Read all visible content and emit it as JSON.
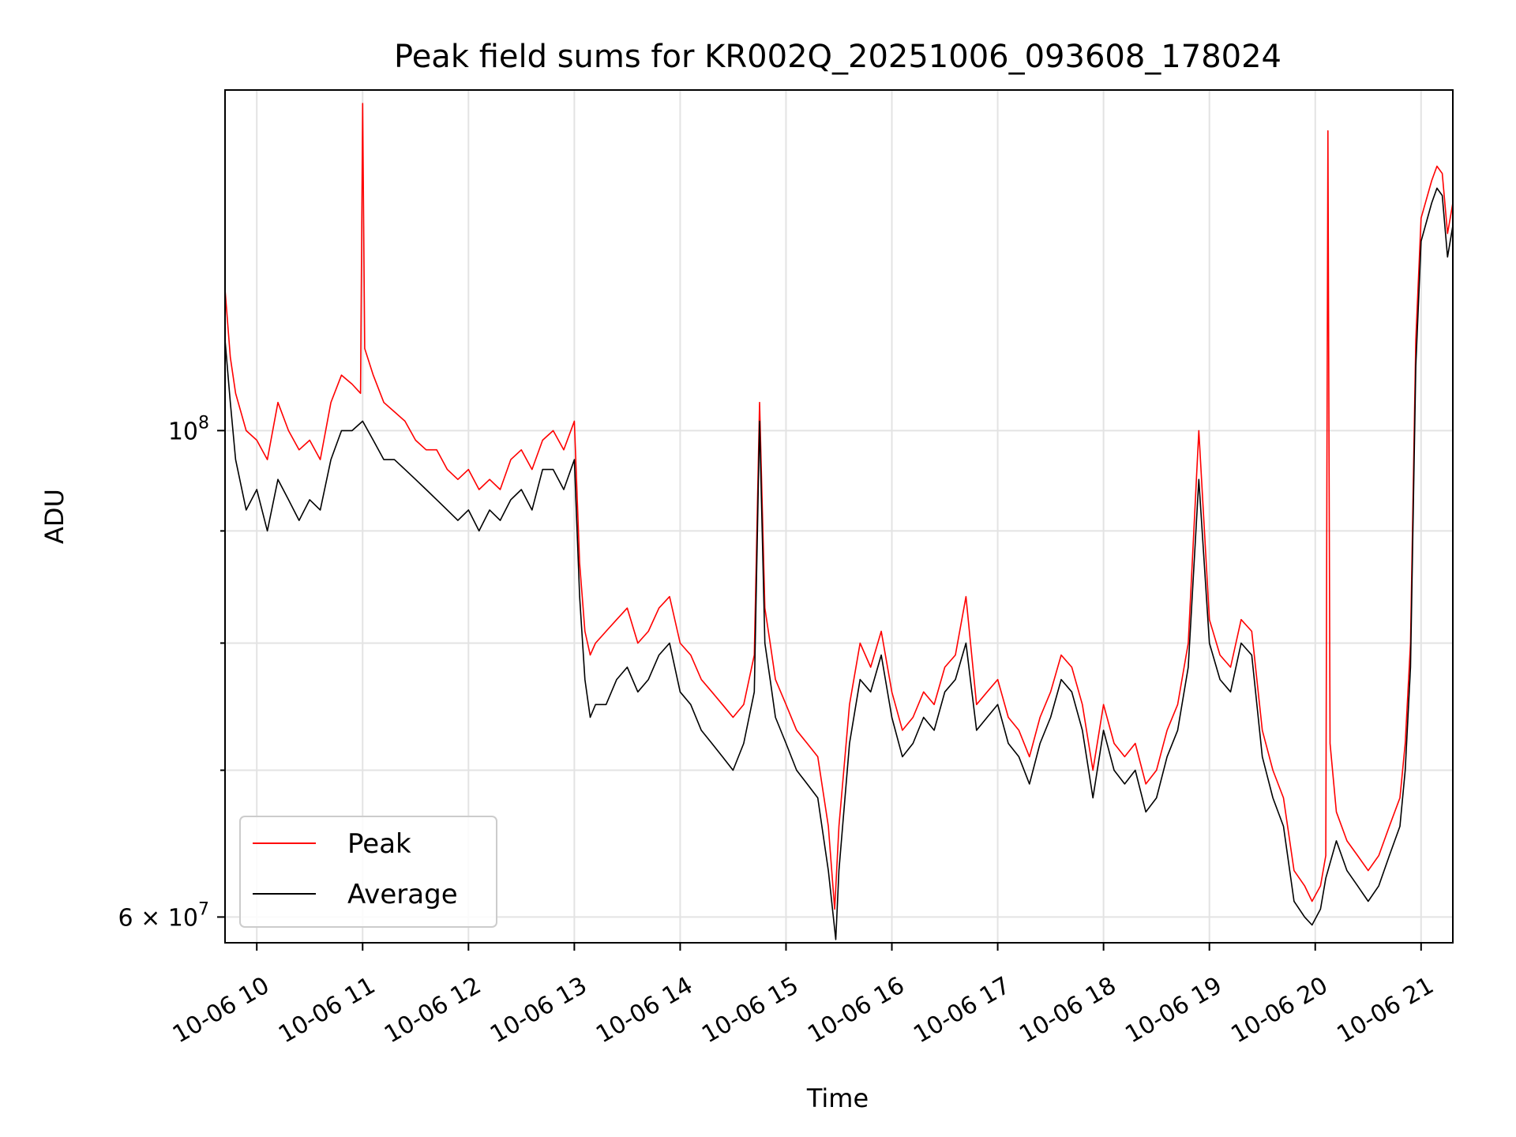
{
  "chart_data": {
    "type": "line",
    "title": "Peak field sums for KR002Q_20251006_093608_178024",
    "xlabel": "Time",
    "ylabel": "ADU",
    "yscale": "log",
    "grid": true,
    "legend_position": "lower-left",
    "x_unit": "hours since 2025-10-06 00:00",
    "xlim": [
      9.7,
      21.3
    ],
    "ylim": [
      58400000,
      143000000
    ],
    "x_ticks": [
      10,
      11,
      12,
      13,
      14,
      15,
      16,
      17,
      18,
      19,
      20,
      21
    ],
    "x_tick_labels": [
      "10-06 10",
      "10-06 11",
      "10-06 12",
      "10-06 13",
      "10-06 14",
      "10-06 15",
      "10-06 16",
      "10-06 17",
      "10-06 18",
      "10-06 19",
      "10-06 20",
      "10-06 21"
    ],
    "y_major_ticks": [
      60000000,
      100000000
    ],
    "y_major_labels": [
      {
        "base": "6 × 10",
        "exp": "7"
      },
      {
        "base": "10",
        "exp": "8"
      }
    ],
    "y_minor_ticks": [
      70000000,
      80000000,
      90000000
    ],
    "series": [
      {
        "name": "Peak",
        "color": "#ff0000",
        "x": [
          9.7,
          9.75,
          9.8,
          9.9,
          10.0,
          10.1,
          10.2,
          10.3,
          10.4,
          10.5,
          10.6,
          10.7,
          10.8,
          10.9,
          10.98,
          11.0,
          11.02,
          11.1,
          11.2,
          11.3,
          11.4,
          11.5,
          11.6,
          11.7,
          11.8,
          11.9,
          12.0,
          12.1,
          12.2,
          12.3,
          12.4,
          12.5,
          12.6,
          12.7,
          12.8,
          12.9,
          13.0,
          13.05,
          13.1,
          13.15,
          13.2,
          13.3,
          13.4,
          13.5,
          13.6,
          13.7,
          13.8,
          13.9,
          14.0,
          14.1,
          14.2,
          14.3,
          14.4,
          14.5,
          14.6,
          14.7,
          14.75,
          14.8,
          14.85,
          14.9,
          15.0,
          15.1,
          15.2,
          15.3,
          15.4,
          15.46,
          15.5,
          15.6,
          15.7,
          15.8,
          15.9,
          16.0,
          16.1,
          16.2,
          16.3,
          16.4,
          16.5,
          16.6,
          16.7,
          16.8,
          16.9,
          17.0,
          17.1,
          17.2,
          17.3,
          17.4,
          17.5,
          17.6,
          17.7,
          17.8,
          17.9,
          18.0,
          18.1,
          18.2,
          18.3,
          18.4,
          18.5,
          18.6,
          18.7,
          18.8,
          18.9,
          19.0,
          19.1,
          19.2,
          19.3,
          19.4,
          19.5,
          19.6,
          19.7,
          19.8,
          19.9,
          19.97,
          20.05,
          20.1,
          20.12,
          20.14,
          20.2,
          20.3,
          20.4,
          20.5,
          20.6,
          20.7,
          20.8,
          20.85,
          20.9,
          20.95,
          21.0,
          21.1,
          21.15,
          21.2,
          21.25,
          21.3
        ],
        "y": [
          116000000,
          108000000,
          104000000,
          100000000,
          99000000,
          97000000,
          103000000,
          100000000,
          98000000,
          99000000,
          97000000,
          103000000,
          106000000,
          105000000,
          104000000,
          141000000,
          109000000,
          106000000,
          103000000,
          102000000,
          101000000,
          99000000,
          98000000,
          98000000,
          96000000,
          95000000,
          96000000,
          94000000,
          95000000,
          94000000,
          97000000,
          98000000,
          96000000,
          99000000,
          100000000,
          98000000,
          101000000,
          87000000,
          81000000,
          79000000,
          80000000,
          81000000,
          82000000,
          83000000,
          80000000,
          81000000,
          83000000,
          84000000,
          80000000,
          79000000,
          77000000,
          76000000,
          75000000,
          74000000,
          75000000,
          79000000,
          103000000,
          83000000,
          80000000,
          77000000,
          75000000,
          73000000,
          72000000,
          71000000,
          66000000,
          60500000,
          66000000,
          75000000,
          80000000,
          78000000,
          81000000,
          76000000,
          73000000,
          74000000,
          76000000,
          75000000,
          78000000,
          79000000,
          84000000,
          75000000,
          76000000,
          77000000,
          74000000,
          73000000,
          71000000,
          74000000,
          76000000,
          79000000,
          78000000,
          75000000,
          70000000,
          75000000,
          72000000,
          71000000,
          72000000,
          69000000,
          70000000,
          73000000,
          75000000,
          80000000,
          100000000,
          82000000,
          79000000,
          78000000,
          82000000,
          81000000,
          73000000,
          70000000,
          68000000,
          63000000,
          62000000,
          61000000,
          62000000,
          64000000,
          137000000,
          72000000,
          67000000,
          65000000,
          64000000,
          63000000,
          64000000,
          66000000,
          68000000,
          72000000,
          80000000,
          110000000,
          125000000,
          130000000,
          132000000,
          131000000,
          123000000,
          127000000
        ],
        "role": "data"
      },
      {
        "name": "Average",
        "color": "#000000",
        "x": [
          9.7,
          9.75,
          9.8,
          9.9,
          10.0,
          10.1,
          10.2,
          10.3,
          10.4,
          10.5,
          10.6,
          10.7,
          10.8,
          10.9,
          11.0,
          11.1,
          11.2,
          11.3,
          11.4,
          11.5,
          11.6,
          11.7,
          11.8,
          11.9,
          12.0,
          12.1,
          12.2,
          12.3,
          12.4,
          12.5,
          12.6,
          12.7,
          12.8,
          12.9,
          13.0,
          13.05,
          13.1,
          13.15,
          13.2,
          13.3,
          13.4,
          13.5,
          13.6,
          13.7,
          13.8,
          13.9,
          14.0,
          14.1,
          14.2,
          14.3,
          14.4,
          14.5,
          14.6,
          14.7,
          14.75,
          14.8,
          14.85,
          14.9,
          15.0,
          15.1,
          15.2,
          15.3,
          15.4,
          15.47,
          15.5,
          15.6,
          15.7,
          15.8,
          15.9,
          16.0,
          16.1,
          16.2,
          16.3,
          16.4,
          16.5,
          16.6,
          16.7,
          16.8,
          16.9,
          17.0,
          17.1,
          17.2,
          17.3,
          17.4,
          17.5,
          17.6,
          17.7,
          17.8,
          17.9,
          18.0,
          18.1,
          18.2,
          18.3,
          18.4,
          18.5,
          18.6,
          18.7,
          18.8,
          18.9,
          19.0,
          19.1,
          19.2,
          19.3,
          19.4,
          19.5,
          19.6,
          19.7,
          19.8,
          19.9,
          19.97,
          20.05,
          20.1,
          20.2,
          20.3,
          20.4,
          20.5,
          20.6,
          20.7,
          20.8,
          20.85,
          20.9,
          20.95,
          21.0,
          21.1,
          21.15,
          21.2,
          21.25,
          21.3
        ],
        "y": [
          110000000,
          103000000,
          97000000,
          92000000,
          94000000,
          90000000,
          95000000,
          93000000,
          91000000,
          93000000,
          92000000,
          97000000,
          100000000,
          100000000,
          101000000,
          99000000,
          97000000,
          97000000,
          96000000,
          95000000,
          94000000,
          93000000,
          92000000,
          91000000,
          92000000,
          90000000,
          92000000,
          91000000,
          93000000,
          94000000,
          92000000,
          96000000,
          96000000,
          94000000,
          97000000,
          84000000,
          77000000,
          74000000,
          75000000,
          75000000,
          77000000,
          78000000,
          76000000,
          77000000,
          79000000,
          80000000,
          76000000,
          75000000,
          73000000,
          72000000,
          71000000,
          70000000,
          72000000,
          76000000,
          101000000,
          80000000,
          77000000,
          74000000,
          72000000,
          70000000,
          69000000,
          68000000,
          63000000,
          58600000,
          63000000,
          72000000,
          77000000,
          76000000,
          79000000,
          74000000,
          71000000,
          72000000,
          74000000,
          73000000,
          76000000,
          77000000,
          80000000,
          73000000,
          74000000,
          75000000,
          72000000,
          71000000,
          69000000,
          72000000,
          74000000,
          77000000,
          76000000,
          73000000,
          68000000,
          73000000,
          70000000,
          69000000,
          70000000,
          67000000,
          68000000,
          71000000,
          73000000,
          78000000,
          95000000,
          80000000,
          77000000,
          76000000,
          80000000,
          79000000,
          71000000,
          68000000,
          66000000,
          61000000,
          60000000,
          59500000,
          60500000,
          62500000,
          65000000,
          63000000,
          62000000,
          61000000,
          62000000,
          64000000,
          66000000,
          70000000,
          78000000,
          107000000,
          122000000,
          127000000,
          129000000,
          128000000,
          120000000,
          124000000
        ],
        "role": "data"
      }
    ]
  }
}
